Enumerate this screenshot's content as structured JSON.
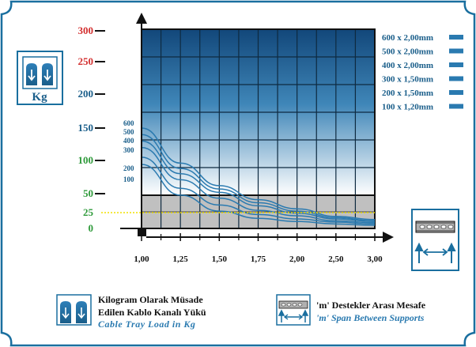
{
  "chart_data": {
    "type": "line",
    "title": "",
    "xlabel": "",
    "ylabel": "Kg",
    "x_ticks": [
      "1,00",
      "1,25",
      "1,50",
      "1,75",
      "2,00",
      "2,50",
      "3,00"
    ],
    "x_values": [
      1.0,
      1.25,
      1.5,
      1.75,
      2.0,
      2.5,
      3.0
    ],
    "y_ticks": [
      {
        "value": 300,
        "label": "300",
        "color": "#d32f2f"
      },
      {
        "value": 250,
        "label": "250",
        "color": "#d32f2f"
      },
      {
        "value": 200,
        "label": "200",
        "color": "#1a5e8a"
      },
      {
        "value": 150,
        "label": "150",
        "color": "#1a5e8a"
      },
      {
        "value": 100,
        "label": "100",
        "color": "#2e9a3a"
      },
      {
        "value": 50,
        "label": "50",
        "color": "#2e9a3a"
      },
      {
        "value": 25,
        "label": "25",
        "color": "#2e9a3a"
      },
      {
        "value": 0,
        "label": "0",
        "color": "#2e9a3a"
      }
    ],
    "ylim": [
      0,
      300
    ],
    "xlim": [
      1.0,
      3.0
    ],
    "reference_line": {
      "value": 25,
      "color": "#f2e000"
    },
    "series": [
      {
        "name": "600 x 2,00mm",
        "label": "600",
        "values": [
          150,
          96,
          62,
          42,
          30,
          19,
          14
        ]
      },
      {
        "name": "500 x 2,00mm",
        "label": "500",
        "values": [
          140,
          88,
          57,
          38,
          27,
          17,
          12
        ]
      },
      {
        "name": "400 x 2,00mm",
        "label": "400",
        "values": [
          130,
          80,
          52,
          34,
          24,
          15,
          11
        ]
      },
      {
        "name": "300 x 1,50mm",
        "label": "300",
        "values": [
          120,
          71,
          44,
          28,
          20,
          12,
          9
        ]
      },
      {
        "name": "200 x 1,50mm",
        "label": "200",
        "values": [
          105,
          58,
          35,
          22,
          15,
          10,
          7
        ]
      },
      {
        "name": "100 x 1,20mm",
        "label": "100",
        "values": [
          94,
          48,
          27,
          16,
          11,
          7,
          5
        ]
      }
    ],
    "legend_placement": "top-right",
    "grid": true
  },
  "colors": {
    "border": "#1a6f9f",
    "line": "#2a7ab0",
    "axis_label": "#1a5e8a"
  },
  "captions": {
    "load_line1": "Kilogram Olarak Müsade",
    "load_line2": "Edilen Kablo Kanalı Yükü",
    "load_en": "Cable Tray  Load in Kg",
    "span_line1": "'m' Destekler Arası Mesafe",
    "span_en": "'m' Span Between Supports"
  },
  "icons": {
    "left": "load-icon",
    "right": "span-icon"
  }
}
